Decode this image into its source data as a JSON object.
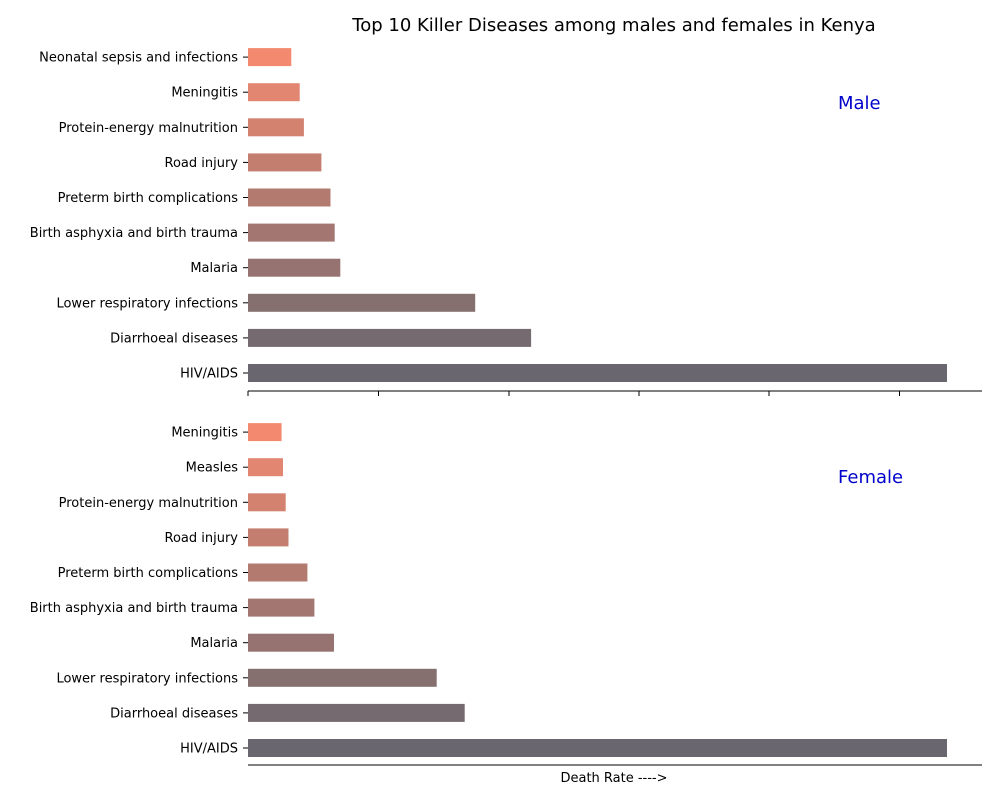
{
  "chart_data": {
    "title": "Top 10 Killer Diseases among males and females in Kenya",
    "xlabel": "Death Rate ---->",
    "type": "bar",
    "orientation": "horizontal",
    "bar_colors": [
      "#6a6670",
      "#756a70",
      "#856f6f",
      "#967370",
      "#a37671",
      "#b37b70",
      "#c47e70",
      "#d48270",
      "#e38671",
      "#f38a6f"
    ],
    "label_color": "#0000cc",
    "panels": [
      {
        "label": "Male",
        "categories": [
          "HIV/AIDS",
          "Diarrhoeal diseases",
          "Lower respiratory infections",
          "Malaria",
          "Birth asphyxia and birth trauma",
          "Preterm birth complications",
          "Road injury",
          "Protein-energy malnutrition",
          "Meningitis",
          "Neonatal sepsis and infections"
        ],
        "values": [
          100,
          40.5,
          32.5,
          13.2,
          12.4,
          11.8,
          10.5,
          8.0,
          7.4,
          6.2
        ],
        "show_tick_marks": true
      },
      {
        "label": "Female",
        "categories": [
          "HIV/AIDS",
          "Diarrhoeal diseases",
          "Lower respiratory infections",
          "Malaria",
          "Birth asphyxia and birth trauma",
          "Preterm birth complications",
          "Road injury",
          "Protein-energy malnutrition",
          "Measles",
          "Meningitis"
        ],
        "values": [
          100,
          31,
          27,
          12.3,
          9.5,
          8.5,
          5.8,
          5.4,
          5.0,
          4.8
        ],
        "show_tick_marks": false
      }
    ]
  }
}
